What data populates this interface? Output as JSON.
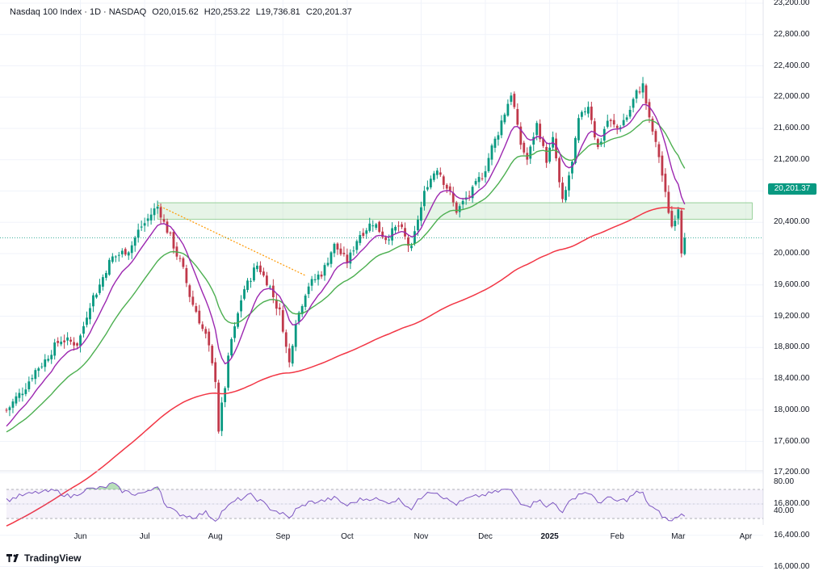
{
  "header": {
    "symbol": "Nasdaq 100 Index",
    "interval": "1D",
    "exchange": "NASDAQ",
    "open": "O20,015.62",
    "high": "H20,253.22",
    "low": "L19,736.81",
    "close": "C20,201.37"
  },
  "last_price": "20,201.37",
  "brand": "TradingView",
  "colors": {
    "up": "#089981",
    "down": "#c0394b",
    "ma_fast": "#9c27b0",
    "ma_mid": "#4caf50",
    "ma_slow": "#f23645",
    "rsi": "#7e57c2",
    "zone": "#c8e6c9",
    "trendline": "#ff9800"
  },
  "chart_data": {
    "type": "candlestick",
    "y_axis": {
      "ticks": [
        "16,000.00",
        "16,400.00",
        "16,800.00",
        "17,200.00",
        "17,600.00",
        "18,000.00",
        "18,400.00",
        "18,800.00",
        "19,200.00",
        "19,600.00",
        "20,000.00",
        "20,400.00",
        "20,800.00",
        "21,200.00",
        "21,600.00",
        "22,000.00",
        "22,400.00",
        "22,800.00",
        "23,200.00"
      ],
      "range": [
        15850,
        23200
      ]
    },
    "x_axis": {
      "ticks": [
        {
          "label": "Jun",
          "day": 23
        },
        {
          "label": "Jul",
          "day": 43
        },
        {
          "label": "Aug",
          "day": 65
        },
        {
          "label": "Sep",
          "day": 86
        },
        {
          "label": "Oct",
          "day": 106
        },
        {
          "label": "Nov",
          "day": 129
        },
        {
          "label": "Dec",
          "day": 149
        },
        {
          "label": "2025",
          "day": 169,
          "bold": true
        },
        {
          "label": "Feb",
          "day": 190
        },
        {
          "label": "Mar",
          "day": 209
        },
        {
          "label": "Apr",
          "day": 230
        }
      ]
    },
    "anchors": [
      [
        0,
        18000
      ],
      [
        4,
        18200
      ],
      [
        10,
        18550
      ],
      [
        17,
        18900
      ],
      [
        22,
        18850
      ],
      [
        27,
        19450
      ],
      [
        33,
        19950
      ],
      [
        38,
        20050
      ],
      [
        42,
        20350
      ],
      [
        47,
        20600
      ],
      [
        50,
        20300
      ],
      [
        54,
        19900
      ],
      [
        58,
        19350
      ],
      [
        62,
        18950
      ],
      [
        65,
        18400
      ],
      [
        66,
        17750
      ],
      [
        67,
        18050
      ],
      [
        70,
        18900
      ],
      [
        74,
        19550
      ],
      [
        78,
        19850
      ],
      [
        81,
        19650
      ],
      [
        85,
        19250
      ],
      [
        88,
        18600
      ],
      [
        90,
        19150
      ],
      [
        94,
        19600
      ],
      [
        98,
        19750
      ],
      [
        102,
        20100
      ],
      [
        106,
        19900
      ],
      [
        110,
        20250
      ],
      [
        114,
        20400
      ],
      [
        118,
        20200
      ],
      [
        122,
        20350
      ],
      [
        126,
        20050
      ],
      [
        128,
        20450
      ],
      [
        131,
        20900
      ],
      [
        134,
        21100
      ],
      [
        137,
        20850
      ],
      [
        140,
        20550
      ],
      [
        144,
        20750
      ],
      [
        148,
        21000
      ],
      [
        152,
        21450
      ],
      [
        155,
        21800
      ],
      [
        157,
        22050
      ],
      [
        160,
        21400
      ],
      [
        162,
        21200
      ],
      [
        165,
        21650
      ],
      [
        168,
        21200
      ],
      [
        170,
        21450
      ],
      [
        173,
        20650
      ],
      [
        176,
        21150
      ],
      [
        178,
        21700
      ],
      [
        181,
        21900
      ],
      [
        184,
        21350
      ],
      [
        187,
        21700
      ],
      [
        190,
        21600
      ],
      [
        193,
        21750
      ],
      [
        196,
        22050
      ],
      [
        198,
        22150
      ],
      [
        200,
        21700
      ],
      [
        203,
        21250
      ],
      [
        205,
        20750
      ],
      [
        207,
        20350
      ],
      [
        209,
        20600
      ],
      [
        210,
        20050
      ],
      [
        211,
        20201
      ]
    ],
    "zone": {
      "low": 20440,
      "high": 20650,
      "from_day": 47,
      "to_day": 232
    },
    "trendline": [
      [
        47,
        20620
      ],
      [
        93,
        19720
      ]
    ],
    "rsi": {
      "ticks": [
        "80.00",
        "40.00"
      ],
      "upper_band": 70,
      "lower_band": 30,
      "samples": [
        [
          0,
          55
        ],
        [
          5,
          62
        ],
        [
          10,
          66
        ],
        [
          15,
          68
        ],
        [
          20,
          60
        ],
        [
          25,
          70
        ],
        [
          30,
          72
        ],
        [
          33,
          78
        ],
        [
          36,
          68
        ],
        [
          40,
          64
        ],
        [
          44,
          66
        ],
        [
          47,
          76
        ],
        [
          50,
          45
        ],
        [
          54,
          36
        ],
        [
          58,
          32
        ],
        [
          62,
          38
        ],
        [
          65,
          28
        ],
        [
          68,
          44
        ],
        [
          72,
          56
        ],
        [
          76,
          62
        ],
        [
          79,
          54
        ],
        [
          82,
          44
        ],
        [
          86,
          36
        ],
        [
          88,
          30
        ],
        [
          90,
          42
        ],
        [
          94,
          52
        ],
        [
          98,
          54
        ],
        [
          102,
          58
        ],
        [
          106,
          48
        ],
        [
          110,
          56
        ],
        [
          114,
          58
        ],
        [
          118,
          52
        ],
        [
          122,
          56
        ],
        [
          126,
          44
        ],
        [
          128,
          54
        ],
        [
          131,
          68
        ],
        [
          134,
          66
        ],
        [
          137,
          56
        ],
        [
          140,
          50
        ],
        [
          144,
          58
        ],
        [
          148,
          62
        ],
        [
          152,
          66
        ],
        [
          155,
          70
        ],
        [
          157,
          68
        ],
        [
          160,
          52
        ],
        [
          163,
          48
        ],
        [
          166,
          58
        ],
        [
          168,
          44
        ],
        [
          170,
          52
        ],
        [
          173,
          40
        ],
        [
          176,
          56
        ],
        [
          178,
          64
        ],
        [
          181,
          66
        ],
        [
          184,
          52
        ],
        [
          187,
          58
        ],
        [
          190,
          54
        ],
        [
          193,
          56
        ],
        [
          196,
          66
        ],
        [
          198,
          64
        ],
        [
          200,
          48
        ],
        [
          203,
          38
        ],
        [
          205,
          30
        ],
        [
          207,
          26
        ],
        [
          209,
          34
        ],
        [
          211,
          36
        ]
      ]
    }
  }
}
